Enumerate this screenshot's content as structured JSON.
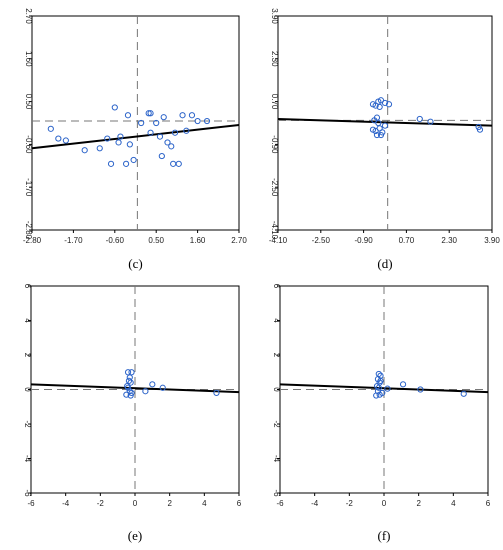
{
  "chart_data": [
    {
      "type": "scatter",
      "caption": "(c)",
      "xlim": [
        -2.8,
        2.7
      ],
      "ylim": [
        -2.8,
        2.7
      ],
      "x_ticks": [
        "-2.80",
        "-1.70",
        "-0.60",
        "0.50",
        "1.60",
        "2.70"
      ],
      "y_ticks": [
        "2.70",
        "1.60",
        "0.50",
        "-0.60",
        "-1.70",
        "-2.80"
      ],
      "reference_lines": {
        "x": 0,
        "y": 0
      },
      "fit_line": {
        "x": [
          -2.8,
          2.7
        ],
        "y": [
          -0.7,
          -0.1
        ]
      },
      "points": [
        [
          -2.3,
          -0.2
        ],
        [
          -2.1,
          -0.45
        ],
        [
          -1.9,
          -0.5
        ],
        [
          -1.4,
          -0.75
        ],
        [
          -1.0,
          -0.7
        ],
        [
          -0.8,
          -0.45
        ],
        [
          -0.7,
          -1.1
        ],
        [
          -0.6,
          0.35
        ],
        [
          -0.5,
          -0.55
        ],
        [
          -0.45,
          -0.4
        ],
        [
          -0.3,
          -1.1
        ],
        [
          -0.25,
          0.15
        ],
        [
          -0.2,
          -0.6
        ],
        [
          -0.1,
          -1.0
        ],
        [
          0.1,
          -0.05
        ],
        [
          0.3,
          0.2
        ],
        [
          0.35,
          0.2
        ],
        [
          0.35,
          -0.3
        ],
        [
          0.5,
          -0.05
        ],
        [
          0.6,
          -0.4
        ],
        [
          0.65,
          -0.9
        ],
        [
          0.7,
          0.1
        ],
        [
          0.8,
          -0.55
        ],
        [
          0.9,
          -0.65
        ],
        [
          0.95,
          -1.1
        ],
        [
          1.0,
          -0.3
        ],
        [
          1.1,
          -1.1
        ],
        [
          1.2,
          0.15
        ],
        [
          1.3,
          -0.25
        ],
        [
          1.45,
          0.15
        ],
        [
          1.6,
          0.0
        ],
        [
          1.85,
          0.0
        ]
      ]
    },
    {
      "type": "scatter",
      "caption": "(d)",
      "xlim": [
        -4.1,
        3.9
      ],
      "ylim": [
        -4.1,
        3.9
      ],
      "x_ticks": [
        "-4.10",
        "-2.50",
        "-0.90",
        "0.70",
        "2.30",
        "3.90"
      ],
      "y_ticks": [
        "3.90",
        "2.30",
        "0.70",
        "-0.90",
        "-2.50",
        "-4.10"
      ],
      "reference_lines": {
        "x": 0,
        "y": 0
      },
      "fit_line": {
        "x": [
          -4.1,
          3.9
        ],
        "y": [
          0.05,
          -0.2
        ]
      },
      "points": [
        [
          -0.55,
          0.6
        ],
        [
          -0.45,
          0.55
        ],
        [
          -0.35,
          0.7
        ],
        [
          -0.3,
          0.5
        ],
        [
          -0.25,
          0.75
        ],
        [
          -0.1,
          0.65
        ],
        [
          0.05,
          0.6
        ],
        [
          -0.5,
          0.0
        ],
        [
          -0.4,
          0.1
        ],
        [
          -0.35,
          -0.1
        ],
        [
          -0.45,
          -0.4
        ],
        [
          -0.55,
          -0.35
        ],
        [
          -0.3,
          -0.3
        ],
        [
          -0.2,
          -0.45
        ],
        [
          -0.4,
          -0.55
        ],
        [
          -0.25,
          -0.55
        ],
        [
          -0.1,
          -0.2
        ],
        [
          1.2,
          0.05
        ],
        [
          1.6,
          -0.05
        ],
        [
          3.4,
          -0.25
        ],
        [
          3.45,
          -0.35
        ]
      ]
    },
    {
      "type": "scatter",
      "caption": "(e)",
      "xlim": [
        -6,
        6
      ],
      "ylim": [
        -6,
        6
      ],
      "x_ticks": [
        "-6",
        "-4",
        "-2",
        "0",
        "2",
        "4",
        "6"
      ],
      "y_ticks": [
        "6",
        "4",
        "2",
        "0",
        "-2",
        "-4",
        "-6"
      ],
      "reference_lines": {
        "x": 0,
        "y": 0
      },
      "fit_line": {
        "x": [
          -6,
          6
        ],
        "y": [
          0.3,
          -0.15
        ]
      },
      "points": [
        [
          -0.4,
          1.0
        ],
        [
          -0.3,
          0.7
        ],
        [
          -0.2,
          1.0
        ],
        [
          -0.35,
          0.5
        ],
        [
          -0.25,
          0.4
        ],
        [
          -0.4,
          0.1
        ],
        [
          -0.3,
          -0.1
        ],
        [
          -0.5,
          -0.3
        ],
        [
          -0.25,
          -0.35
        ],
        [
          -0.2,
          -0.2
        ],
        [
          -0.45,
          0.2
        ],
        [
          0.6,
          -0.1
        ],
        [
          1.0,
          0.3
        ],
        [
          1.6,
          0.1
        ],
        [
          4.7,
          -0.2
        ]
      ]
    },
    {
      "type": "scatter",
      "caption": "(f)",
      "xlim": [
        -6,
        6
      ],
      "ylim": [
        -6,
        6
      ],
      "x_ticks": [
        "-6",
        "-4",
        "-2",
        "0",
        "2",
        "4",
        "6"
      ],
      "y_ticks": [
        "6",
        "4",
        "2",
        "0",
        "-2",
        "-4",
        "-6"
      ],
      "reference_lines": {
        "x": 0,
        "y": 0
      },
      "fit_line": {
        "x": [
          -6,
          6
        ],
        "y": [
          0.3,
          -0.15
        ]
      },
      "points": [
        [
          -0.3,
          0.9
        ],
        [
          -0.2,
          0.8
        ],
        [
          -0.35,
          0.6
        ],
        [
          -0.25,
          0.4
        ],
        [
          -0.4,
          0.2
        ],
        [
          -0.3,
          0.1
        ],
        [
          -0.35,
          -0.1
        ],
        [
          -0.45,
          -0.35
        ],
        [
          -0.25,
          -0.3
        ],
        [
          -0.1,
          -0.2
        ],
        [
          0.2,
          0.05
        ],
        [
          -0.2,
          0.5
        ],
        [
          1.1,
          0.3
        ],
        [
          2.1,
          0.0
        ],
        [
          4.6,
          -0.25
        ]
      ]
    }
  ]
}
